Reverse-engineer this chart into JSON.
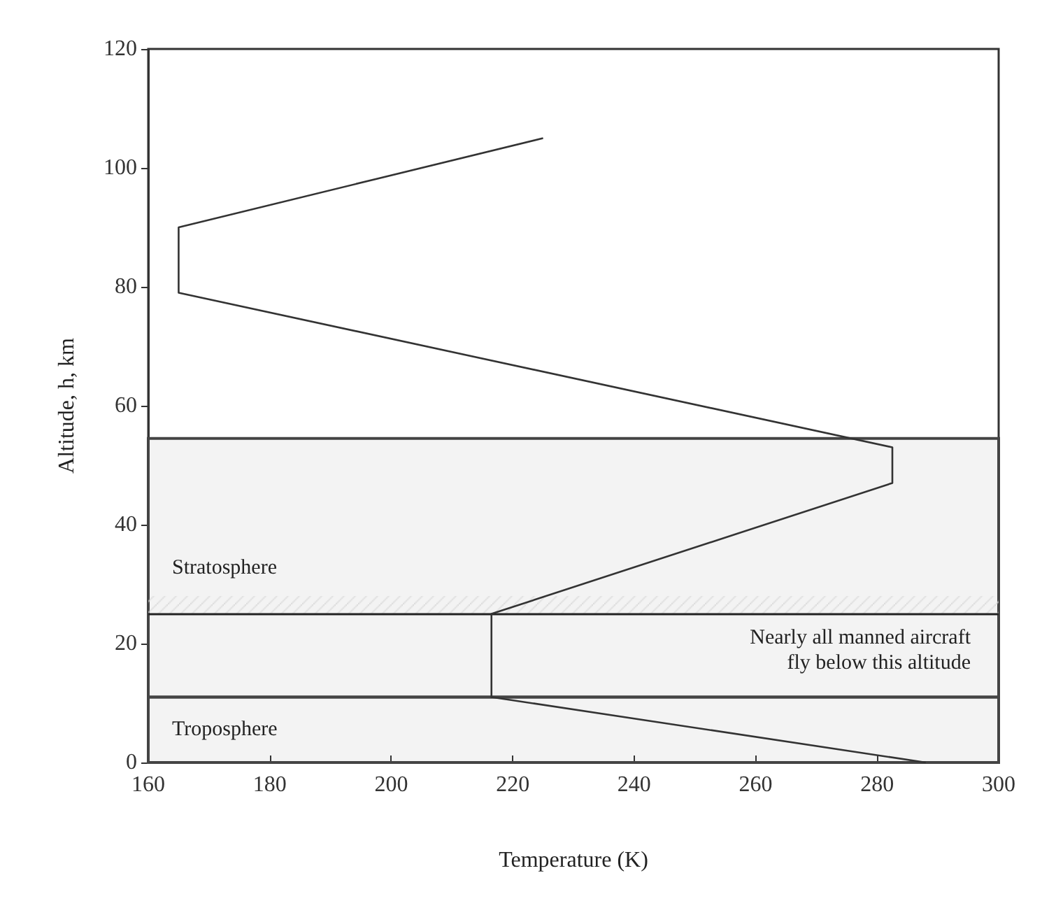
{
  "chart_data": {
    "type": "line",
    "xlabel": "Temperature (K)",
    "ylabel": "Altitude, h, km",
    "series": [
      {
        "color": "#333333",
        "x": [
          288,
          216.5,
          216.5,
          282.5,
          282.5,
          165,
          165,
          225
        ],
        "values": [
          0,
          11,
          25,
          47,
          53,
          79,
          90,
          105
        ]
      }
    ],
    "xlim": [
      160,
      300
    ],
    "xticks": [
      160,
      180,
      200,
      220,
      240,
      260,
      280,
      300
    ],
    "ylim": [
      0,
      120
    ],
    "yticks": [
      0,
      20,
      40,
      60,
      80,
      100,
      120
    ],
    "bands": [
      {
        "axis": "y",
        "from": 0,
        "to": 11,
        "label": "Troposphere",
        "color": "#444444"
      },
      {
        "axis": "y",
        "from": 11,
        "to": 54.5,
        "label": "Stratosphere",
        "color": "#444444"
      },
      {
        "axis": "y",
        "from": 25,
        "to": 28,
        "color": "#d8d8d8"
      }
    ],
    "ref_lines": [
      {
        "axis": "y",
        "value": 25,
        "label": "Nearly all manned aircraft\nfly below this altitude",
        "color": "#222222"
      }
    ],
    "grid": false,
    "marker": "none",
    "line_style": "solid"
  }
}
